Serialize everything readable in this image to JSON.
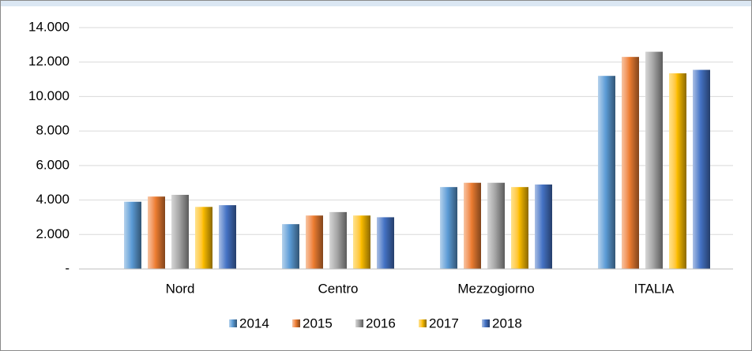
{
  "chart_data": {
    "type": "bar",
    "categories": [
      "Nord",
      "Centro",
      "Mezzogiorno",
      "ITALIA"
    ],
    "series": [
      {
        "name": "2014",
        "color": "#5b9bd5",
        "values": [
          3900,
          2600,
          4750,
          11200
        ]
      },
      {
        "name": "2015",
        "color": "#ed7d31",
        "values": [
          4200,
          3100,
          5000,
          12300
        ]
      },
      {
        "name": "2016",
        "color": "#a5a5a5",
        "values": [
          4300,
          3300,
          5000,
          12600
        ]
      },
      {
        "name": "2017",
        "color": "#ffc000",
        "values": [
          3600,
          3100,
          4750,
          11350
        ]
      },
      {
        "name": "2018",
        "color": "#4472c4",
        "values": [
          3700,
          3000,
          4900,
          11550
        ]
      }
    ],
    "ylim": [
      0,
      14000
    ],
    "yticks": [
      {
        "value": 0,
        "label": "-"
      },
      {
        "value": 2000,
        "label": "2.000"
      },
      {
        "value": 4000,
        "label": "4.000"
      },
      {
        "value": 6000,
        "label": "6.000"
      },
      {
        "value": 8000,
        "label": "8.000"
      },
      {
        "value": 10000,
        "label": "10.000"
      },
      {
        "value": 12000,
        "label": "12.000"
      },
      {
        "value": 14000,
        "label": "14.000"
      }
    ],
    "grid": true,
    "legend": "bottom"
  }
}
